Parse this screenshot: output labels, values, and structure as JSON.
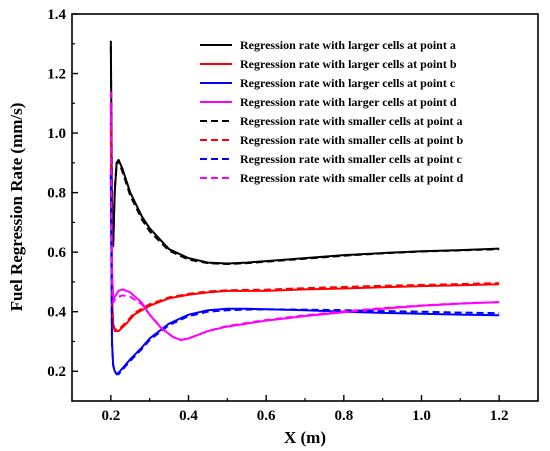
{
  "chart_data": {
    "type": "line",
    "title": "",
    "xlabel": "X (m)",
    "ylabel": "Fuel Regression Rate (mm/s)",
    "xlim": [
      0.1,
      1.3
    ],
    "ylim": [
      0.1,
      1.4
    ],
    "xticks": [
      0.2,
      0.4,
      0.6,
      0.8,
      1.0,
      1.2
    ],
    "yticks": [
      0.2,
      0.4,
      0.6,
      0.8,
      1.0,
      1.2,
      1.4
    ],
    "xtick_labels": [
      "0.2",
      "0.4",
      "0.6",
      "0.8",
      "1.0",
      "1.2"
    ],
    "ytick_labels": [
      "0.2",
      "0.4",
      "0.6",
      "0.8",
      "1.0",
      "1.2",
      "1.4"
    ],
    "grid": false,
    "legend_position": "top-right",
    "series": [
      {
        "name": "Regression rate with larger cells at point a",
        "color": "#000000",
        "dash": "solid",
        "x": [
          0.2,
          0.203,
          0.206,
          0.21,
          0.215,
          0.22,
          0.23,
          0.25,
          0.28,
          0.3,
          0.35,
          0.4,
          0.45,
          0.5,
          0.55,
          0.6,
          0.7,
          0.8,
          0.9,
          1.0,
          1.1,
          1.2
        ],
        "y": [
          1.31,
          0.75,
          0.62,
          0.8,
          0.9,
          0.91,
          0.88,
          0.8,
          0.72,
          0.68,
          0.61,
          0.58,
          0.565,
          0.562,
          0.565,
          0.57,
          0.58,
          0.59,
          0.597,
          0.603,
          0.607,
          0.612
        ]
      },
      {
        "name": "Regression rate with larger cells at point b",
        "color": "#ff0000",
        "dash": "solid",
        "x": [
          0.2,
          0.203,
          0.206,
          0.21,
          0.22,
          0.24,
          0.26,
          0.3,
          0.35,
          0.4,
          0.45,
          0.5,
          0.6,
          0.7,
          0.8,
          0.9,
          1.0,
          1.1,
          1.2
        ],
        "y": [
          1.05,
          0.45,
          0.36,
          0.335,
          0.335,
          0.36,
          0.39,
          0.42,
          0.445,
          0.457,
          0.465,
          0.47,
          0.47,
          0.475,
          0.478,
          0.482,
          0.486,
          0.489,
          0.492
        ]
      },
      {
        "name": "Regression rate with larger cells at point c",
        "color": "#0000ff",
        "dash": "solid",
        "x": [
          0.2,
          0.203,
          0.206,
          0.21,
          0.215,
          0.22,
          0.23,
          0.25,
          0.28,
          0.3,
          0.35,
          0.4,
          0.45,
          0.5,
          0.55,
          0.6,
          0.7,
          0.8,
          0.9,
          1.0,
          1.1,
          1.2
        ],
        "y": [
          0.88,
          0.3,
          0.22,
          0.2,
          0.19,
          0.195,
          0.21,
          0.24,
          0.28,
          0.31,
          0.36,
          0.39,
          0.405,
          0.41,
          0.41,
          0.408,
          0.405,
          0.4,
          0.396,
          0.393,
          0.39,
          0.388
        ]
      },
      {
        "name": "Regression rate with larger cells at point d",
        "color": "#ff00ff",
        "dash": "solid",
        "x": [
          0.2,
          0.203,
          0.206,
          0.21,
          0.22,
          0.23,
          0.25,
          0.28,
          0.3,
          0.33,
          0.36,
          0.38,
          0.4,
          0.42,
          0.45,
          0.5,
          0.6,
          0.7,
          0.8,
          0.9,
          1.0,
          1.1,
          1.2
        ],
        "y": [
          1.1,
          0.55,
          0.44,
          0.45,
          0.47,
          0.475,
          0.465,
          0.43,
          0.39,
          0.345,
          0.315,
          0.305,
          0.31,
          0.32,
          0.335,
          0.35,
          0.37,
          0.385,
          0.398,
          0.41,
          0.42,
          0.427,
          0.432
        ]
      },
      {
        "name": "Regression rate with smaller cells at point a",
        "color": "#000000",
        "dash": "dashed",
        "x": [
          0.2,
          0.203,
          0.206,
          0.21,
          0.215,
          0.22,
          0.23,
          0.25,
          0.28,
          0.3,
          0.35,
          0.4,
          0.45,
          0.5,
          0.55,
          0.6,
          0.7,
          0.8,
          0.9,
          1.0,
          1.1,
          1.2
        ],
        "y": [
          1.29,
          0.74,
          0.63,
          0.81,
          0.9,
          0.905,
          0.87,
          0.79,
          0.71,
          0.67,
          0.605,
          0.575,
          0.563,
          0.56,
          0.563,
          0.568,
          0.578,
          0.588,
          0.596,
          0.602,
          0.606,
          0.61
        ]
      },
      {
        "name": "Regression rate with smaller cells at point b",
        "color": "#ff0000",
        "dash": "dashed",
        "x": [
          0.2,
          0.203,
          0.206,
          0.21,
          0.22,
          0.24,
          0.26,
          0.3,
          0.35,
          0.4,
          0.45,
          0.5,
          0.6,
          0.7,
          0.8,
          0.9,
          1.0,
          1.1,
          1.2
        ],
        "y": [
          1.02,
          0.44,
          0.36,
          0.34,
          0.34,
          0.365,
          0.395,
          0.425,
          0.448,
          0.46,
          0.468,
          0.472,
          0.474,
          0.479,
          0.483,
          0.487,
          0.49,
          0.493,
          0.496
        ]
      },
      {
        "name": "Regression rate with smaller cells at point c",
        "color": "#0000ff",
        "dash": "dashed",
        "x": [
          0.2,
          0.203,
          0.206,
          0.21,
          0.215,
          0.22,
          0.23,
          0.25,
          0.28,
          0.3,
          0.35,
          0.4,
          0.45,
          0.5,
          0.55,
          0.6,
          0.7,
          0.8,
          0.9,
          1.0,
          1.1,
          1.2
        ],
        "y": [
          0.86,
          0.29,
          0.22,
          0.2,
          0.19,
          0.19,
          0.205,
          0.235,
          0.275,
          0.305,
          0.355,
          0.385,
          0.4,
          0.405,
          0.407,
          0.408,
          0.407,
          0.405,
          0.402,
          0.4,
          0.397,
          0.395
        ]
      },
      {
        "name": "Regression rate with smaller cells at point d",
        "color": "#ff00ff",
        "dash": "dashed",
        "x": [
          0.2,
          0.203,
          0.206,
          0.21,
          0.22,
          0.23,
          0.25,
          0.28,
          0.3,
          0.33,
          0.36,
          0.38,
          0.4,
          0.42,
          0.45,
          0.5,
          0.6,
          0.7,
          0.8,
          0.9,
          1.0,
          1.1,
          1.2
        ],
        "y": [
          1.14,
          0.52,
          0.43,
          0.44,
          0.45,
          0.455,
          0.45,
          0.425,
          0.39,
          0.345,
          0.315,
          0.305,
          0.31,
          0.32,
          0.335,
          0.352,
          0.372,
          0.388,
          0.401,
          0.412,
          0.421,
          0.428,
          0.432
        ]
      }
    ]
  }
}
